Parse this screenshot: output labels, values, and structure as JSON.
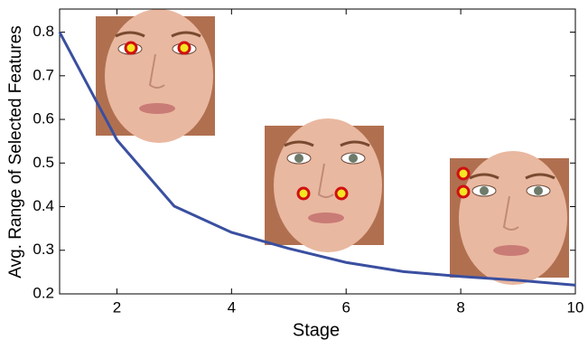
{
  "chart_data": {
    "type": "line",
    "x_label": "Stage",
    "y_label": "Avg. Range of Selected Features",
    "x": [
      1,
      2,
      3,
      4,
      5,
      6,
      7,
      8,
      9,
      10
    ],
    "series": [
      {
        "color": "#3a4fa0",
        "values": [
          0.8,
          0.553,
          0.401,
          0.341,
          0.304,
          0.272,
          0.251,
          0.24,
          0.231,
          0.22
        ]
      }
    ],
    "xlim": [
      1,
      10
    ],
    "xticks": [
      2,
      4,
      6,
      8,
      10
    ],
    "ylim": [
      0.2,
      0.853
    ],
    "yticks": [
      0.2,
      0.3,
      0.4,
      0.5,
      0.6,
      0.7,
      0.8
    ]
  }
}
